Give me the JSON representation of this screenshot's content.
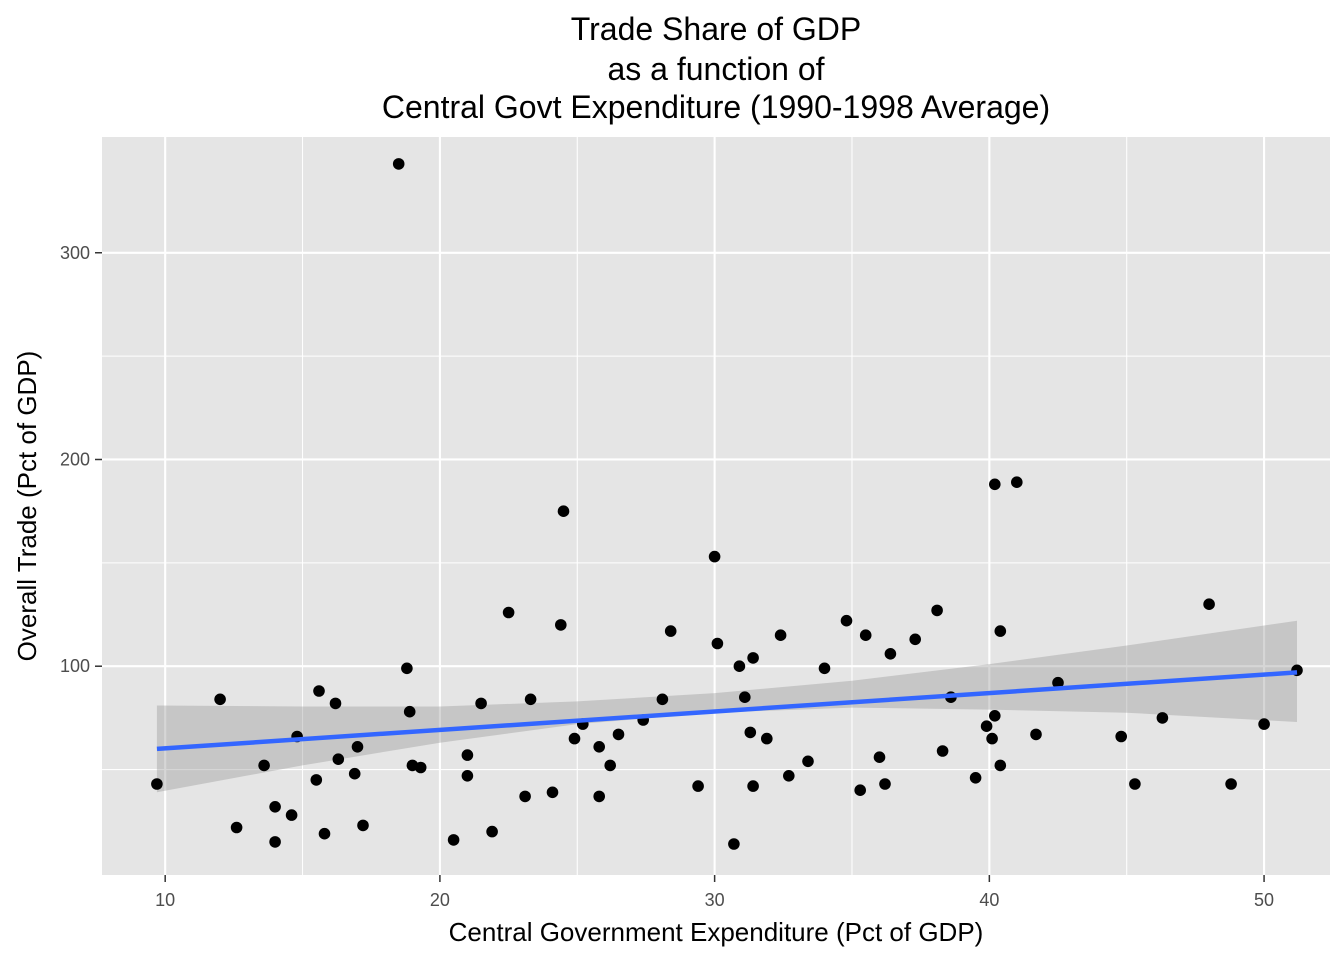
{
  "chart_data": {
    "type": "scatter",
    "title_lines": [
      "Trade Share of GDP",
      "as a function of",
      "Central Govt Expenditure (1990-1998 Average)"
    ],
    "xlabel": "Central Government Expenditure (Pct of GDP)",
    "ylabel": "Overall Trade (Pct of GDP)",
    "xlim": [
      7.7,
      52.4
    ],
    "ylim": [
      -1,
      356
    ],
    "x_major_ticks": [
      10,
      20,
      30,
      40,
      50
    ],
    "x_minor_ticks": [
      15,
      25,
      35,
      45
    ],
    "y_major_ticks": [
      100,
      200,
      300
    ],
    "y_minor_ticks": [
      50,
      150,
      250
    ],
    "x_tick_labels": [
      "10",
      "20",
      "30",
      "40",
      "50"
    ],
    "y_tick_labels": [
      "100",
      "200",
      "300"
    ],
    "grid": true,
    "background": "#e5e5e5",
    "point_color": "#000000",
    "fit_line_color": "#3366ff",
    "confidence_band_color": "#999999",
    "points": [
      [
        9.7,
        43
      ],
      [
        12.0,
        84
      ],
      [
        12.6,
        22
      ],
      [
        13.6,
        52
      ],
      [
        14.0,
        15
      ],
      [
        14.0,
        32
      ],
      [
        14.6,
        28
      ],
      [
        14.8,
        66
      ],
      [
        15.5,
        45
      ],
      [
        15.6,
        88
      ],
      [
        15.8,
        19
      ],
      [
        16.2,
        82
      ],
      [
        16.3,
        55
      ],
      [
        16.9,
        48
      ],
      [
        17.0,
        61
      ],
      [
        17.2,
        23
      ],
      [
        18.5,
        343
      ],
      [
        18.8,
        99
      ],
      [
        18.9,
        78
      ],
      [
        19.0,
        52
      ],
      [
        19.3,
        51
      ],
      [
        20.5,
        16
      ],
      [
        21.0,
        47
      ],
      [
        21.0,
        57
      ],
      [
        21.5,
        82
      ],
      [
        21.9,
        20
      ],
      [
        22.5,
        126
      ],
      [
        23.1,
        37
      ],
      [
        23.3,
        84
      ],
      [
        24.1,
        39
      ],
      [
        24.4,
        120
      ],
      [
        24.5,
        175
      ],
      [
        24.9,
        65
      ],
      [
        25.2,
        72
      ],
      [
        25.8,
        61
      ],
      [
        25.8,
        37
      ],
      [
        26.2,
        52
      ],
      [
        26.5,
        67
      ],
      [
        27.4,
        74
      ],
      [
        28.1,
        84
      ],
      [
        28.4,
        117
      ],
      [
        29.4,
        42
      ],
      [
        30.0,
        153
      ],
      [
        30.1,
        111
      ],
      [
        30.7,
        14
      ],
      [
        30.9,
        100
      ],
      [
        31.1,
        85
      ],
      [
        31.3,
        68
      ],
      [
        31.4,
        42
      ],
      [
        31.4,
        104
      ],
      [
        31.9,
        65
      ],
      [
        32.4,
        115
      ],
      [
        32.7,
        47
      ],
      [
        33.4,
        54
      ],
      [
        34.0,
        99
      ],
      [
        34.8,
        122
      ],
      [
        35.3,
        40
      ],
      [
        35.5,
        115
      ],
      [
        36.0,
        56
      ],
      [
        36.2,
        43
      ],
      [
        36.4,
        106
      ],
      [
        37.3,
        113
      ],
      [
        38.1,
        127
      ],
      [
        38.3,
        59
      ],
      [
        38.6,
        85
      ],
      [
        39.5,
        46
      ],
      [
        39.9,
        71
      ],
      [
        40.1,
        65
      ],
      [
        40.2,
        188
      ],
      [
        40.2,
        76
      ],
      [
        40.4,
        117
      ],
      [
        40.4,
        52
      ],
      [
        41.0,
        189
      ],
      [
        41.7,
        67
      ],
      [
        42.5,
        92
      ],
      [
        44.8,
        66
      ],
      [
        45.3,
        43
      ],
      [
        46.3,
        75
      ],
      [
        48.0,
        130
      ],
      [
        48.8,
        43
      ],
      [
        50.0,
        72
      ],
      [
        51.2,
        98
      ]
    ],
    "fit_line": {
      "x": [
        9.7,
        51.2
      ],
      "y": [
        60,
        97
      ]
    },
    "confidence_band": {
      "x": [
        9.7,
        15,
        20,
        25,
        30,
        35,
        40,
        45,
        51.2
      ],
      "upper": [
        81,
        80.5,
        80.5,
        83,
        87,
        93,
        101,
        110,
        122
      ],
      "lower": [
        39,
        52,
        63,
        72,
        77.5,
        80,
        79,
        77.5,
        73
      ]
    }
  }
}
